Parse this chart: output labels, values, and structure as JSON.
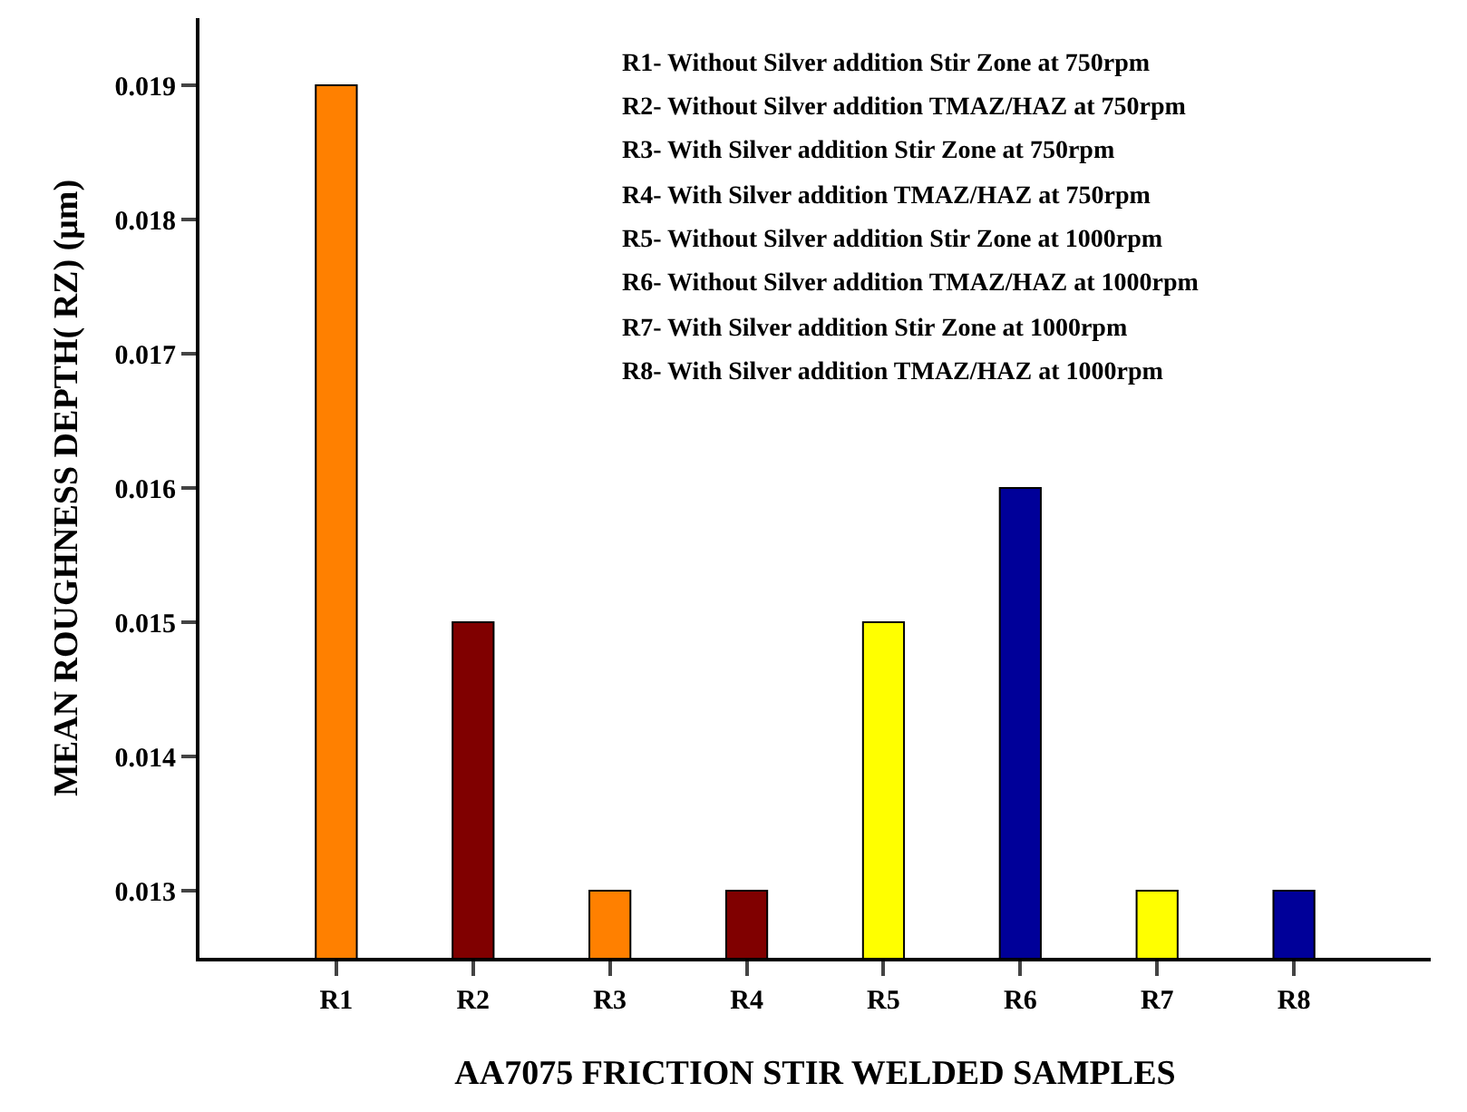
{
  "chart_data": {
    "type": "bar",
    "xlabel": "AA7075 FRICTION STIR WELDED SAMPLES",
    "ylabel": "MEAN ROUGHNESS DEPTH( RZ) (μm)",
    "categories": [
      "R1",
      "R2",
      "R3",
      "R4",
      "R5",
      "R6",
      "R7",
      "R8"
    ],
    "values": [
      0.019,
      0.015,
      0.013,
      0.013,
      0.015,
      0.016,
      0.013,
      0.013
    ],
    "colors": [
      "#ff8000",
      "#800000",
      "#ff8000",
      "#800000",
      "#ffff00",
      "#000099",
      "#ffff00",
      "#000099"
    ],
    "ylim": [
      0.0125,
      0.0195
    ],
    "yticks": [
      0.013,
      0.014,
      0.015,
      0.016,
      0.017,
      0.018,
      0.019
    ],
    "annotations": [
      "R1- Without Silver addition Stir Zone at 750rpm",
      "R2- Without Silver addition TMAZ/HAZ at 750rpm",
      "R3- With Silver addition Stir Zone at 750rpm",
      "R4- With Silver addition TMAZ/HAZ at 750rpm",
      "R5- Without Silver addition Stir Zone at 1000rpm",
      "R6- Without Silver addition TMAZ/HAZ at 1000rpm",
      "R7- With Silver addition Stir Zone at 1000rpm",
      "R8- With Silver addition TMAZ/HAZ at 1000rpm"
    ]
  }
}
